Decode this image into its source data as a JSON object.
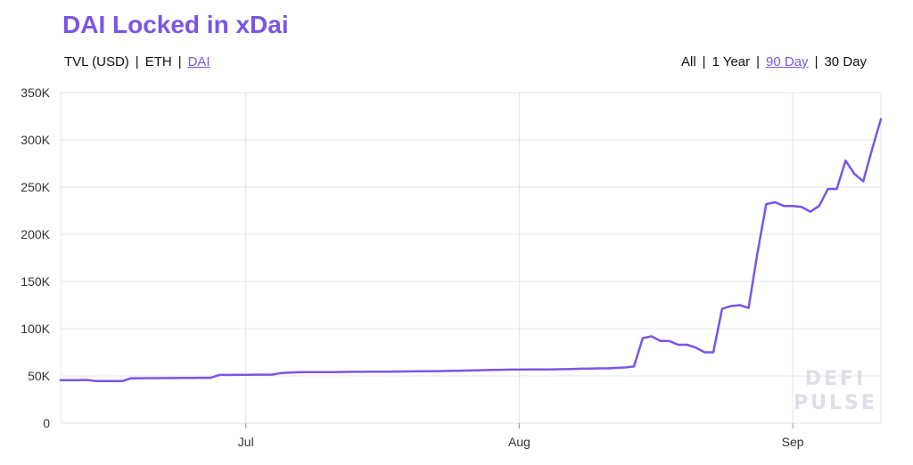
{
  "title": "DAI Locked in xDai",
  "metric_options": [
    {
      "label": "TVL (USD)",
      "active": false
    },
    {
      "label": "ETH",
      "active": false
    },
    {
      "label": "DAI",
      "active": true
    }
  ],
  "range_options": [
    {
      "label": "All",
      "active": false
    },
    {
      "label": "1 Year",
      "active": false
    },
    {
      "label": "90 Day",
      "active": true
    },
    {
      "label": "30 Day",
      "active": false
    }
  ],
  "separator": "|",
  "watermark": [
    "DEFI",
    "PULSE"
  ],
  "colors": {
    "line": "#7a55e6",
    "accent": "#7a55e6",
    "grid": "#e4e4e4"
  },
  "chart_data": {
    "type": "line",
    "title": "DAI Locked in xDai",
    "ylim": [
      0,
      350000
    ],
    "y_ticks": [
      0,
      50000,
      100000,
      150000,
      200000,
      250000,
      300000,
      350000
    ],
    "y_tick_labels": [
      "0",
      "50K",
      "100K",
      "150K",
      "200K",
      "250K",
      "300K",
      "350K"
    ],
    "x_ticks": [
      "Jul",
      "Aug",
      "Sep"
    ],
    "grid": true,
    "series": [
      {
        "x": [
          "2020-06-10",
          "2020-06-11",
          "2020-06-12",
          "2020-06-13",
          "2020-06-14",
          "2020-06-15",
          "2020-06-16",
          "2020-06-17",
          "2020-06-18",
          "2020-06-19",
          "2020-06-20",
          "2020-06-21",
          "2020-06-22",
          "2020-06-23",
          "2020-06-24",
          "2020-06-25",
          "2020-06-26",
          "2020-06-27",
          "2020-06-28",
          "2020-06-29",
          "2020-06-30",
          "2020-07-01",
          "2020-07-02",
          "2020-07-03",
          "2020-07-04",
          "2020-07-05",
          "2020-07-06",
          "2020-07-07",
          "2020-07-08",
          "2020-07-09",
          "2020-07-10",
          "2020-07-11",
          "2020-07-12",
          "2020-07-13",
          "2020-07-14",
          "2020-07-15",
          "2020-07-16",
          "2020-07-17",
          "2020-07-18",
          "2020-07-19",
          "2020-07-20",
          "2020-07-21",
          "2020-07-22",
          "2020-07-23",
          "2020-07-24",
          "2020-07-25",
          "2020-07-26",
          "2020-07-27",
          "2020-07-28",
          "2020-07-29",
          "2020-07-30",
          "2020-07-31",
          "2020-08-01",
          "2020-08-02",
          "2020-08-03",
          "2020-08-04",
          "2020-08-05",
          "2020-08-06",
          "2020-08-07",
          "2020-08-08",
          "2020-08-09",
          "2020-08-10",
          "2020-08-11",
          "2020-08-12",
          "2020-08-13",
          "2020-08-14",
          "2020-08-15",
          "2020-08-16",
          "2020-08-17",
          "2020-08-18",
          "2020-08-19",
          "2020-08-20",
          "2020-08-21",
          "2020-08-22",
          "2020-08-23",
          "2020-08-24",
          "2020-08-25",
          "2020-08-26",
          "2020-08-27",
          "2020-08-28",
          "2020-08-29",
          "2020-08-30",
          "2020-08-31",
          "2020-09-01",
          "2020-09-02",
          "2020-09-03",
          "2020-09-04",
          "2020-09-05",
          "2020-09-06",
          "2020-09-07",
          "2020-09-08",
          "2020-09-09",
          "2020-09-10",
          "2020-09-11"
        ],
        "values": [
          45500,
          45500,
          45500,
          45800,
          44500,
          44500,
          44500,
          44500,
          47500,
          47500,
          47600,
          47600,
          47700,
          47700,
          47800,
          47900,
          48000,
          48000,
          51000,
          51000,
          51200,
          51200,
          51300,
          51300,
          51400,
          53000,
          53500,
          54000,
          54000,
          54000,
          54000,
          54100,
          54200,
          54300,
          54300,
          54400,
          54400,
          54500,
          54600,
          54700,
          54800,
          54900,
          55000,
          55100,
          55300,
          55500,
          55700,
          55900,
          56100,
          56300,
          56500,
          56700,
          56700,
          56800,
          56800,
          56900,
          57000,
          57200,
          57400,
          57600,
          57800,
          58000,
          58000,
          58500,
          59000,
          60000,
          90000,
          92000,
          87000,
          87000,
          83000,
          83000,
          80000,
          75000,
          75000,
          121000,
          124000,
          125000,
          122000,
          180000,
          232000,
          234000,
          230000,
          230000,
          229000,
          224000,
          230000,
          248000,
          248000,
          278000,
          264000,
          256000,
          290000,
          322000
        ]
      }
    ]
  }
}
